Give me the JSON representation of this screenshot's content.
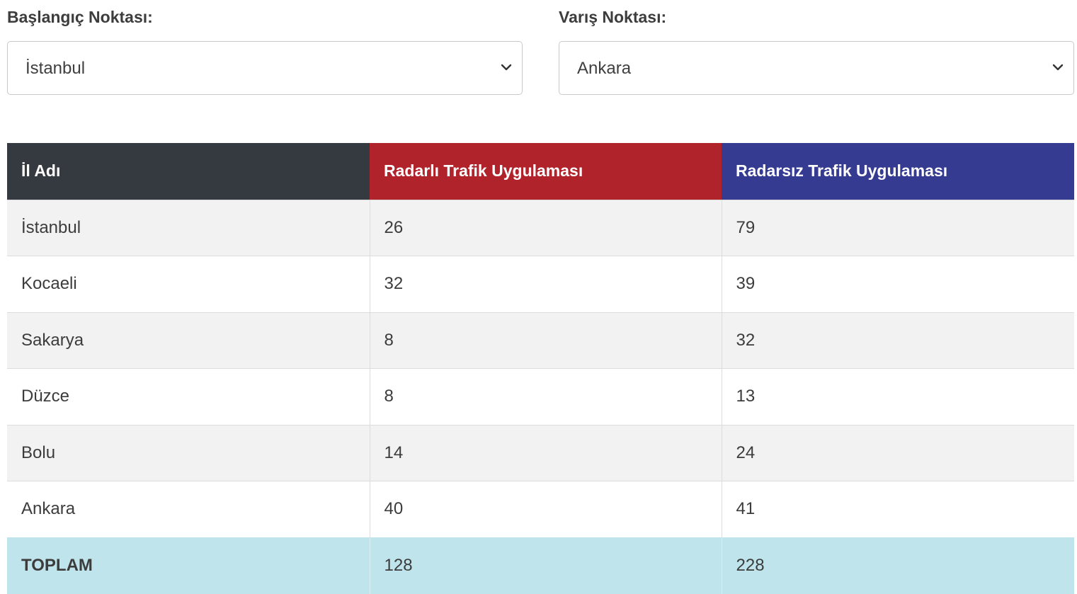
{
  "start": {
    "label": "Başlangıç Noktası:",
    "selected": "İstanbul",
    "icon": "chevron-down-icon"
  },
  "end": {
    "label": "Varış Noktası:",
    "selected": "Ankara",
    "icon": "chevron-down-icon"
  },
  "table": {
    "headers": [
      "İl Adı",
      "Radarlı Trafik Uygulaması",
      "Radarsız Trafik Uygulaması"
    ],
    "header_colors": [
      "#343a40",
      "#b0232b",
      "#353b91"
    ],
    "rows": [
      [
        "İstanbul",
        "26",
        "79"
      ],
      [
        "Kocaeli",
        "32",
        "39"
      ],
      [
        "Sakarya",
        "8",
        "32"
      ],
      [
        "Düzce",
        "8",
        "13"
      ],
      [
        "Bolu",
        "14",
        "24"
      ],
      [
        "Ankara",
        "40",
        "41"
      ]
    ],
    "total": [
      "TOPLAM",
      "128",
      "228"
    ],
    "total_color": "#bfe4ec"
  }
}
